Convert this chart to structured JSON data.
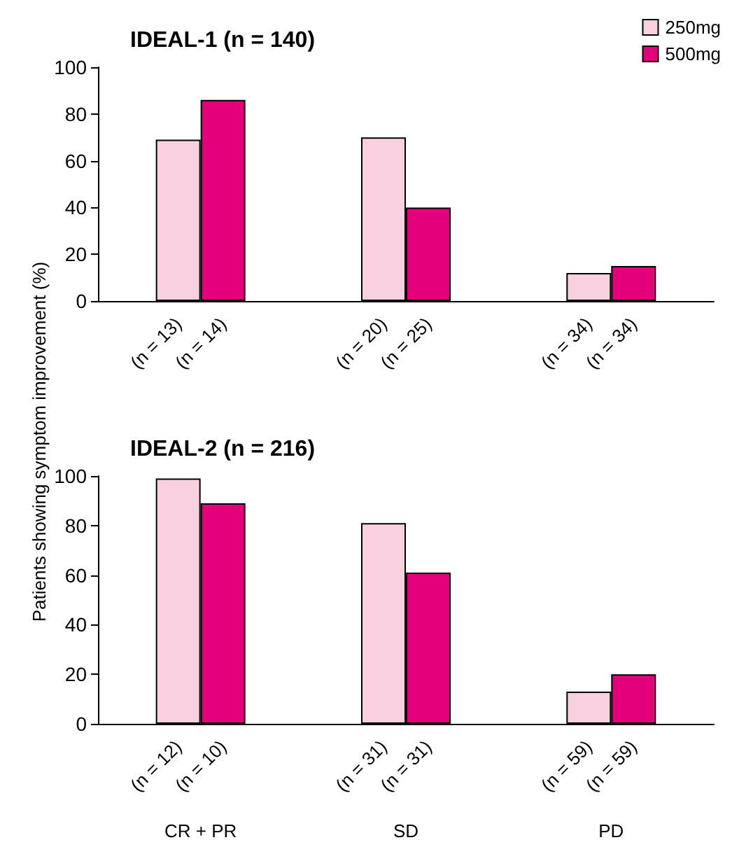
{
  "chart_data": [
    {
      "type": "bar",
      "title": "IDEAL-1 (n = 140)",
      "ylabel": "Patients showing symptom improvement (%)",
      "categories": [
        null,
        null,
        null
      ],
      "series": [
        {
          "name": "250mg",
          "color": "#f8d0df",
          "values": [
            69,
            70,
            12
          ]
        },
        {
          "name": "500mg",
          "color": "#e4007a",
          "values": [
            86,
            40,
            15
          ]
        }
      ],
      "annotations": [
        "(n = 13)",
        "(n = 14)",
        "(n = 20)",
        "(n = 25)",
        "(n = 34)",
        "(n = 34)"
      ],
      "ylim": [
        0,
        100
      ],
      "yticks": [
        0,
        20,
        40,
        60,
        80,
        100
      ],
      "grid": false,
      "legend": "top right",
      "tick_labels": "y"
    },
    {
      "type": "bar",
      "title": "IDEAL-2 (n = 216)",
      "categories": [
        "CR + PR",
        "SD",
        "PD"
      ],
      "series": [
        {
          "color": "#f8d0df",
          "values": [
            99,
            81,
            13
          ]
        },
        {
          "color": "#e4007a",
          "values": [
            89,
            61,
            20
          ]
        }
      ],
      "annotations": [
        "(n = 12)",
        "(n = 10)",
        "(n = 31)",
        "(n = 31)",
        "(n = 59)",
        "(n = 59)"
      ],
      "ylim": [
        0,
        100
      ],
      "yticks": [
        0,
        20,
        40,
        60,
        80,
        100
      ],
      "grid": false,
      "legend": false
    }
  ]
}
